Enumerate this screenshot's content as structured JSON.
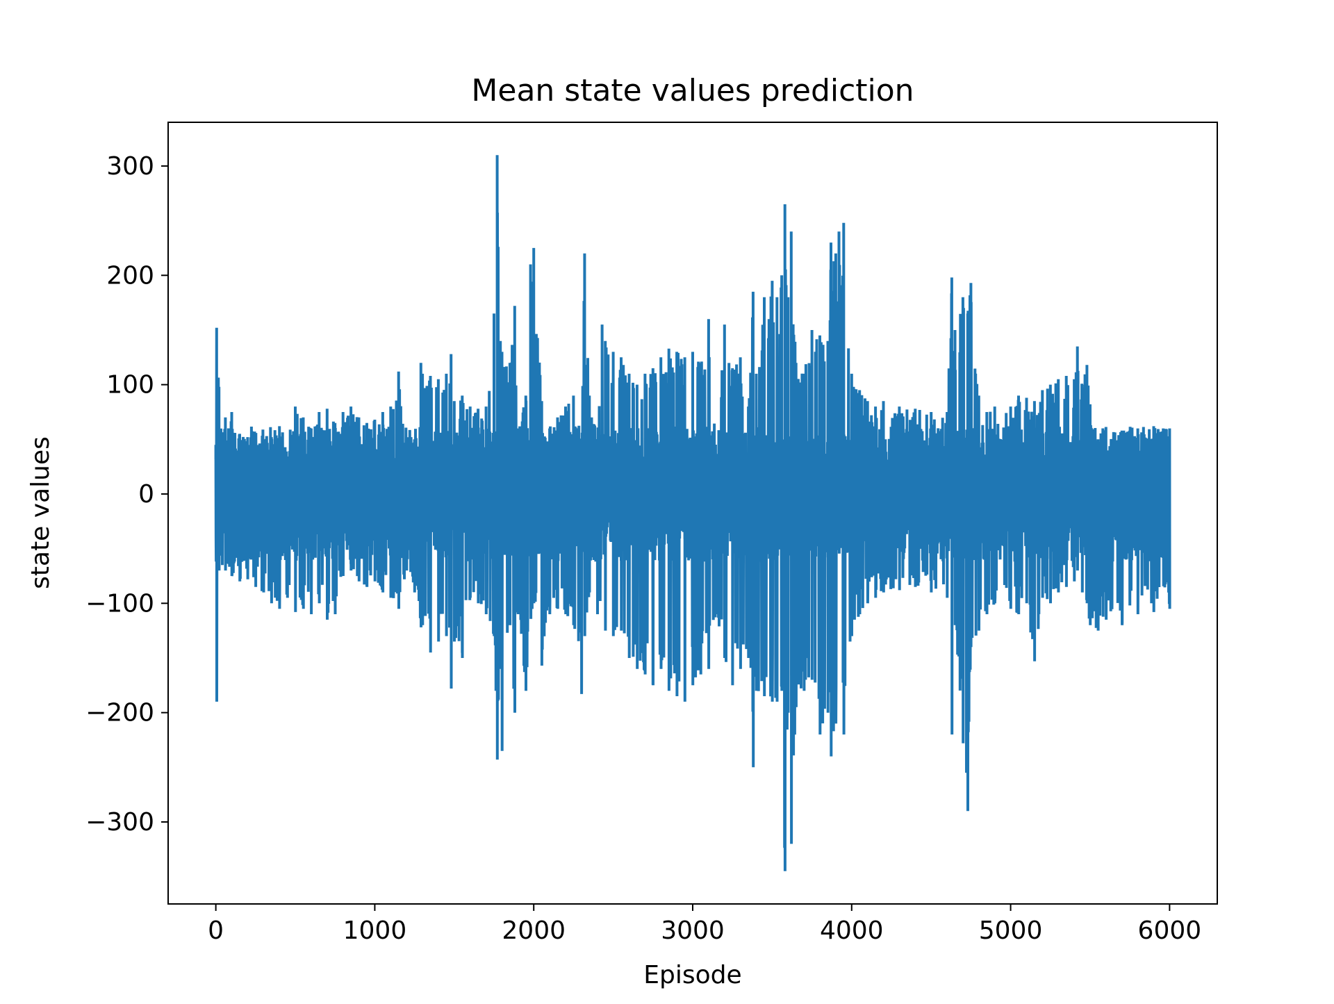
{
  "chart_data": {
    "type": "line",
    "title": "Mean state values prediction",
    "xlabel": "Episode",
    "ylabel": "state values",
    "xlim": [
      -300,
      6300
    ],
    "ylim": [
      -375,
      340
    ],
    "xticks": [
      0,
      1000,
      2000,
      3000,
      4000,
      5000,
      6000
    ],
    "xtick_labels": [
      "0",
      "1000",
      "2000",
      "3000",
      "4000",
      "5000",
      "6000"
    ],
    "yticks": [
      -300,
      -200,
      -100,
      0,
      100,
      200,
      300
    ],
    "ytick_labels": [
      "−300",
      "−200",
      "−100",
      "0",
      "100",
      "200",
      "300"
    ],
    "grid": false,
    "series": [
      {
        "color": "#1f77b4",
        "x_start": 0,
        "x_end": 6000,
        "upper_envelope": [
          [
            0,
            45
          ],
          [
            5,
            152
          ],
          [
            20,
            98
          ],
          [
            40,
            55
          ],
          [
            60,
            70
          ],
          [
            100,
            75
          ],
          [
            150,
            55
          ],
          [
            200,
            52
          ],
          [
            250,
            55
          ],
          [
            300,
            50
          ],
          [
            350,
            52
          ],
          [
            400,
            62
          ],
          [
            450,
            30
          ],
          [
            500,
            80
          ],
          [
            550,
            70
          ],
          [
            600,
            60
          ],
          [
            650,
            75
          ],
          [
            700,
            78
          ],
          [
            750,
            65
          ],
          [
            800,
            75
          ],
          [
            850,
            80
          ],
          [
            900,
            70
          ],
          [
            950,
            65
          ],
          [
            1000,
            68
          ],
          [
            1050,
            75
          ],
          [
            1100,
            80
          ],
          [
            1150,
            112
          ],
          [
            1200,
            48
          ],
          [
            1250,
            50
          ],
          [
            1290,
            120
          ],
          [
            1300,
            110
          ],
          [
            1350,
            108
          ],
          [
            1400,
            105
          ],
          [
            1450,
            110
          ],
          [
            1480,
            128
          ],
          [
            1500,
            85
          ],
          [
            1550,
            90
          ],
          [
            1600,
            80
          ],
          [
            1650,
            78
          ],
          [
            1700,
            80
          ],
          [
            1750,
            165
          ],
          [
            1770,
            310
          ],
          [
            1790,
            140
          ],
          [
            1800,
            130
          ],
          [
            1850,
            120
          ],
          [
            1880,
            172
          ],
          [
            1900,
            60
          ],
          [
            1950,
            90
          ],
          [
            1980,
            210
          ],
          [
            2000,
            225
          ],
          [
            2050,
            85
          ],
          [
            2100,
            60
          ],
          [
            2150,
            70
          ],
          [
            2200,
            80
          ],
          [
            2250,
            90
          ],
          [
            2300,
            50
          ],
          [
            2320,
            220
          ],
          [
            2350,
            90
          ],
          [
            2400,
            50
          ],
          [
            2430,
            155
          ],
          [
            2450,
            140
          ],
          [
            2500,
            130
          ],
          [
            2550,
            125
          ],
          [
            2600,
            110
          ],
          [
            2650,
            100
          ],
          [
            2700,
            110
          ],
          [
            2750,
            115
          ],
          [
            2800,
            125
          ],
          [
            2850,
            133
          ],
          [
            2900,
            130
          ],
          [
            2950,
            125
          ],
          [
            3000,
            130
          ],
          [
            3050,
            120
          ],
          [
            3100,
            160
          ],
          [
            3150,
            30
          ],
          [
            3200,
            155
          ],
          [
            3250,
            115
          ],
          [
            3300,
            125
          ],
          [
            3350,
            80
          ],
          [
            3380,
            185
          ],
          [
            3400,
            110
          ],
          [
            3450,
            180
          ],
          [
            3480,
            160
          ],
          [
            3500,
            195
          ],
          [
            3530,
            180
          ],
          [
            3560,
            200
          ],
          [
            3580,
            265
          ],
          [
            3600,
            180
          ],
          [
            3620,
            240
          ],
          [
            3650,
            120
          ],
          [
            3700,
            110
          ],
          [
            3750,
            150
          ],
          [
            3800,
            145
          ],
          [
            3850,
            140
          ],
          [
            3870,
            230
          ],
          [
            3900,
            220
          ],
          [
            3920,
            240
          ],
          [
            3950,
            248
          ],
          [
            4000,
            110
          ],
          [
            4050,
            95
          ],
          [
            4100,
            85
          ],
          [
            4150,
            80
          ],
          [
            4200,
            85
          ],
          [
            4300,
            80
          ],
          [
            4400,
            78
          ],
          [
            4500,
            75
          ],
          [
            4600,
            75
          ],
          [
            4630,
            198
          ],
          [
            4650,
            150
          ],
          [
            4700,
            180
          ],
          [
            4730,
            165
          ],
          [
            4750,
            193
          ],
          [
            4800,
            90
          ],
          [
            4850,
            75
          ],
          [
            4900,
            80
          ],
          [
            5000,
            80
          ],
          [
            5050,
            90
          ],
          [
            5100,
            88
          ],
          [
            5150,
            85
          ],
          [
            5200,
            95
          ],
          [
            5250,
            100
          ],
          [
            5300,
            105
          ],
          [
            5350,
            108
          ],
          [
            5400,
            105
          ],
          [
            5420,
            135
          ],
          [
            5450,
            100
          ],
          [
            5480,
            118
          ],
          [
            5500,
            82
          ],
          [
            5550,
            50
          ],
          [
            5600,
            55
          ],
          [
            5700,
            58
          ],
          [
            5800,
            60
          ],
          [
            5900,
            62
          ],
          [
            6000,
            60
          ]
        ],
        "lower_envelope": [
          [
            0,
            -40
          ],
          [
            5,
            -190
          ],
          [
            20,
            -70
          ],
          [
            40,
            -65
          ],
          [
            60,
            -70
          ],
          [
            100,
            -75
          ],
          [
            150,
            -80
          ],
          [
            200,
            -78
          ],
          [
            250,
            -85
          ],
          [
            300,
            -90
          ],
          [
            350,
            -100
          ],
          [
            400,
            -105
          ],
          [
            450,
            -95
          ],
          [
            500,
            -108
          ],
          [
            550,
            -105
          ],
          [
            600,
            -110
          ],
          [
            650,
            -100
          ],
          [
            700,
            -115
          ],
          [
            750,
            -110
          ],
          [
            800,
            -75
          ],
          [
            850,
            -70
          ],
          [
            900,
            -80
          ],
          [
            950,
            -85
          ],
          [
            1000,
            -80
          ],
          [
            1050,
            -90
          ],
          [
            1100,
            -95
          ],
          [
            1150,
            -105
          ],
          [
            1200,
            -70
          ],
          [
            1250,
            -90
          ],
          [
            1290,
            -122
          ],
          [
            1300,
            -120
          ],
          [
            1350,
            -145
          ],
          [
            1400,
            -135
          ],
          [
            1450,
            -130
          ],
          [
            1480,
            -178
          ],
          [
            1500,
            -135
          ],
          [
            1550,
            -150
          ],
          [
            1600,
            -95
          ],
          [
            1650,
            -100
          ],
          [
            1700,
            -110
          ],
          [
            1750,
            -130
          ],
          [
            1770,
            -243
          ],
          [
            1790,
            -160
          ],
          [
            1800,
            -235
          ],
          [
            1850,
            -120
          ],
          [
            1880,
            -200
          ],
          [
            1900,
            -110
          ],
          [
            1950,
            -180
          ],
          [
            2000,
            -100
          ],
          [
            2050,
            -157
          ],
          [
            2100,
            -110
          ],
          [
            2150,
            -105
          ],
          [
            2200,
            -110
          ],
          [
            2250,
            -120
          ],
          [
            2300,
            -183
          ],
          [
            2320,
            -130
          ],
          [
            2350,
            -90
          ],
          [
            2400,
            -110
          ],
          [
            2450,
            -125
          ],
          [
            2500,
            -130
          ],
          [
            2550,
            -125
          ],
          [
            2600,
            -150
          ],
          [
            2650,
            -160
          ],
          [
            2700,
            -165
          ],
          [
            2750,
            -175
          ],
          [
            2800,
            -160
          ],
          [
            2850,
            -180
          ],
          [
            2900,
            -185
          ],
          [
            2950,
            -190
          ],
          [
            3000,
            -175
          ],
          [
            3050,
            -165
          ],
          [
            3100,
            -160
          ],
          [
            3150,
            -110
          ],
          [
            3200,
            -150
          ],
          [
            3250,
            -175
          ],
          [
            3300,
            -160
          ],
          [
            3350,
            -150
          ],
          [
            3380,
            -250
          ],
          [
            3400,
            -180
          ],
          [
            3450,
            -185
          ],
          [
            3500,
            -190
          ],
          [
            3530,
            -190
          ],
          [
            3560,
            -180
          ],
          [
            3580,
            -345
          ],
          [
            3600,
            -200
          ],
          [
            3620,
            -320
          ],
          [
            3650,
            -195
          ],
          [
            3700,
            -180
          ],
          [
            3750,
            -170
          ],
          [
            3800,
            -220
          ],
          [
            3850,
            -200
          ],
          [
            3870,
            -240
          ],
          [
            3900,
            -210
          ],
          [
            3950,
            -220
          ],
          [
            4000,
            -130
          ],
          [
            4050,
            -110
          ],
          [
            4100,
            -100
          ],
          [
            4150,
            -95
          ],
          [
            4200,
            -90
          ],
          [
            4300,
            -88
          ],
          [
            4400,
            -85
          ],
          [
            4500,
            -90
          ],
          [
            4600,
            -95
          ],
          [
            4630,
            -220
          ],
          [
            4650,
            -120
          ],
          [
            4700,
            -228
          ],
          [
            4730,
            -290
          ],
          [
            4750,
            -140
          ],
          [
            4800,
            -125
          ],
          [
            4850,
            -110
          ],
          [
            4900,
            -100
          ],
          [
            5000,
            -105
          ],
          [
            5050,
            -110
          ],
          [
            5100,
            -100
          ],
          [
            5150,
            -153
          ],
          [
            5200,
            -95
          ],
          [
            5250,
            -100
          ],
          [
            5300,
            -90
          ],
          [
            5350,
            -85
          ],
          [
            5400,
            -80
          ],
          [
            5420,
            -70
          ],
          [
            5450,
            -90
          ],
          [
            5480,
            -100
          ],
          [
            5500,
            -120
          ],
          [
            5550,
            -125
          ],
          [
            5600,
            -115
          ],
          [
            5700,
            -120
          ],
          [
            5800,
            -110
          ],
          [
            5900,
            -108
          ],
          [
            6000,
            -105
          ]
        ],
        "core_range": [
          -62,
          62
        ]
      }
    ]
  }
}
